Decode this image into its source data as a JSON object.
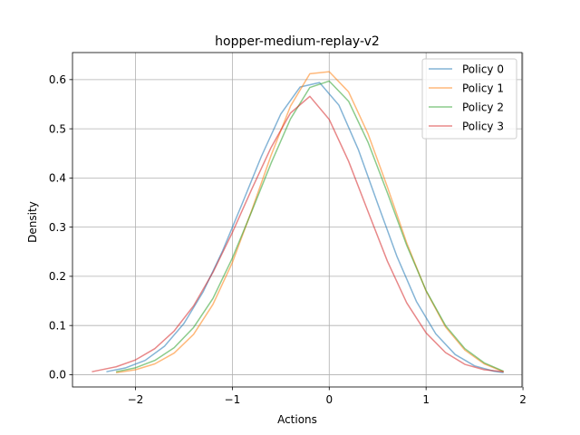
{
  "chart_data": {
    "type": "line",
    "title": "hopper-medium-replay-v2",
    "xlabel": "Actions",
    "ylabel": "Density",
    "xlim": [
      -2.65,
      1.99
    ],
    "ylim": [
      -0.025,
      0.655
    ],
    "xticks": [
      -2,
      -1,
      0,
      1,
      2
    ],
    "xtick_labels": [
      "−2",
      "−1",
      "0",
      "1",
      "2"
    ],
    "yticks": [
      0.0,
      0.1,
      0.2,
      0.3,
      0.4,
      0.5,
      0.6
    ],
    "ytick_labels": [
      "0.0",
      "0.1",
      "0.2",
      "0.3",
      "0.4",
      "0.5",
      "0.6"
    ],
    "grid": true,
    "legend_position": "upper right",
    "series": [
      {
        "name": "Policy 0",
        "color": "#1f77b4",
        "x": [
          -2.3,
          -2.1,
          -1.9,
          -1.7,
          -1.5,
          -1.3,
          -1.1,
          -0.9,
          -0.7,
          -0.5,
          -0.3,
          -0.1,
          0.1,
          0.3,
          0.5,
          0.7,
          0.9,
          1.1,
          1.3,
          1.5,
          1.7,
          1.8
        ],
        "y": [
          0.006,
          0.014,
          0.029,
          0.058,
          0.104,
          0.169,
          0.252,
          0.347,
          0.444,
          0.53,
          0.585,
          0.594,
          0.548,
          0.458,
          0.348,
          0.24,
          0.149,
          0.083,
          0.041,
          0.018,
          0.007,
          0.004
        ]
      },
      {
        "name": "Policy 1",
        "color": "#ff7f0e",
        "x": [
          -2.2,
          -2.0,
          -1.8,
          -1.6,
          -1.4,
          -1.2,
          -1.0,
          -0.8,
          -0.6,
          -0.4,
          -0.2,
          0.0,
          0.2,
          0.4,
          0.6,
          0.8,
          1.0,
          1.2,
          1.4,
          1.6,
          1.8
        ],
        "y": [
          0.004,
          0.01,
          0.022,
          0.044,
          0.082,
          0.143,
          0.228,
          0.334,
          0.446,
          0.546,
          0.612,
          0.616,
          0.575,
          0.49,
          0.382,
          0.268,
          0.17,
          0.097,
          0.05,
          0.022,
          0.006
        ]
      },
      {
        "name": "Policy 2",
        "color": "#2ca02c",
        "x": [
          -2.2,
          -2.0,
          -1.8,
          -1.6,
          -1.4,
          -1.2,
          -1.0,
          -0.8,
          -0.6,
          -0.4,
          -0.2,
          0.0,
          0.2,
          0.4,
          0.6,
          0.8,
          1.0,
          1.2,
          1.4,
          1.6,
          1.8
        ],
        "y": [
          0.006,
          0.014,
          0.029,
          0.055,
          0.096,
          0.155,
          0.237,
          0.332,
          0.43,
          0.52,
          0.584,
          0.597,
          0.556,
          0.473,
          0.37,
          0.263,
          0.171,
          0.1,
          0.053,
          0.024,
          0.007
        ]
      },
      {
        "name": "Policy 3",
        "color": "#d62728",
        "x": [
          -2.45,
          -2.2,
          -2.0,
          -1.8,
          -1.6,
          -1.4,
          -1.2,
          -1.0,
          -0.8,
          -0.6,
          -0.4,
          -0.2,
          0.0,
          0.2,
          0.4,
          0.6,
          0.8,
          1.0,
          1.2,
          1.4,
          1.6,
          1.8
        ],
        "y": [
          0.006,
          0.016,
          0.03,
          0.053,
          0.089,
          0.14,
          0.208,
          0.289,
          0.377,
          0.462,
          0.532,
          0.566,
          0.519,
          0.434,
          0.332,
          0.231,
          0.146,
          0.085,
          0.045,
          0.021,
          0.01,
          0.006
        ]
      }
    ]
  }
}
